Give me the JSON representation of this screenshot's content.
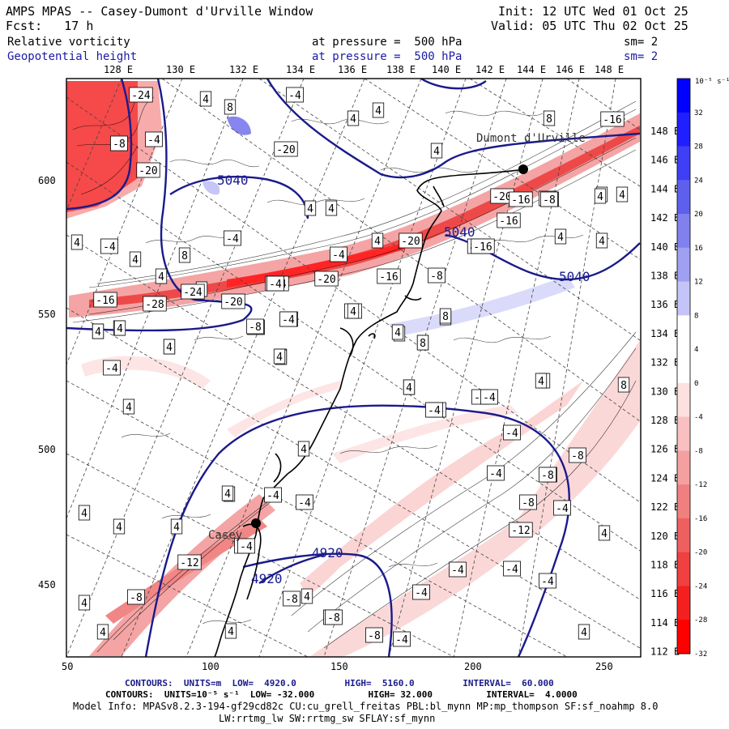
{
  "header": {
    "title": "AMPS MPAS -- Casey-Dumont d'Urville Window",
    "init": "Init: 12 UTC Wed 01 Oct 25",
    "fcst": "Fcst:   17 h",
    "valid": "Valid: 05 UTC Thu 02 Oct 25",
    "field1_name": "Relative vorticity",
    "field1_level": "at pressure =  500 hPa",
    "field1_sm": "sm= 2",
    "field2_name": "Geopotential height",
    "field2_level": "at pressure =  500 hPa",
    "field2_sm": "sm= 2"
  },
  "top_lon_labels": [
    "128 E",
    "130 E",
    "132 E",
    "134 E",
    "136 E",
    "138 E",
    "140 E",
    "142 E",
    "144 E",
    "146 E",
    "148 E"
  ],
  "right_lon_labels": [
    "148 E",
    "146 E",
    "144 E",
    "142 E",
    "140 E",
    "138 E",
    "136 E",
    "134 E",
    "132 E",
    "130 E",
    "128 E",
    "126 E",
    "124 E",
    "122 E",
    "120 E",
    "118 E",
    "116 E",
    "114 E",
    "112 E"
  ],
  "x_ticks": [
    "50",
    "100",
    "150",
    "200",
    "250"
  ],
  "y_ticks": [
    "600",
    "550",
    "500",
    "450"
  ],
  "places": {
    "dumont": "Dumont d'Urville",
    "casey": "Casey"
  },
  "height_labels": [
    "5040",
    "5040",
    "5040",
    "4920",
    "4920"
  ],
  "colorbar": {
    "unit": "10⁻⁵ s⁻¹",
    "labels": [
      "32",
      "28",
      "24",
      "20",
      "16",
      "12",
      "8",
      "4",
      "0",
      "-4",
      "-8",
      "-12",
      "-16",
      "-20",
      "-24",
      "-28",
      "-32"
    ],
    "colors": [
      "#0000ff",
      "#1f1fff",
      "#3f3ff5",
      "#5f5fee",
      "#8080ee",
      "#a0a0f2",
      "#c4c4f8",
      "#ffffff",
      "#ffffff",
      "#fde0e0",
      "#f8c0c0",
      "#f4a0a0",
      "#f08080",
      "#ee6060",
      "#f04040",
      "#f42020",
      "#ff0000"
    ]
  },
  "footer": {
    "line1": "CONTOURS:  UNITS=m  LOW=  4920.0         HIGH=  5160.0         INTERVAL=  60.000",
    "line2": "CONTOURS:  UNITS=10⁻⁵ s⁻¹  LOW= -32.000          HIGH= 32.000          INTERVAL=  4.0000",
    "line3": "Model Info: MPASv8.2.3-194-gf29cd82c CU:cu_grell_freitas PBL:bl_mynn MP:mp_thompson SF:sf_noahmp 8.0",
    "line4": "LW:rrtmg_lw SW:rrtmg_sw SFLAY:sf_mynn"
  },
  "vort_labels": [
    {
      "t": "-24"
    },
    {
      "t": "4"
    },
    {
      "t": "8"
    },
    {
      "t": "-4"
    },
    {
      "t": "4"
    },
    {
      "t": "4"
    },
    {
      "t": "8"
    },
    {
      "t": "-16"
    },
    {
      "t": "-8"
    },
    {
      "t": "-4"
    },
    {
      "t": "-20"
    },
    {
      "t": "4"
    },
    {
      "t": "-8"
    },
    {
      "t": "4"
    },
    {
      "t": "4"
    },
    {
      "t": "-20"
    },
    {
      "t": "-16"
    },
    {
      "t": "4"
    },
    {
      "t": "4"
    },
    {
      "t": "8"
    },
    {
      "t": "-4"
    },
    {
      "t": "4"
    },
    {
      "t": "4"
    },
    {
      "t": "4"
    },
    {
      "t": "4"
    },
    {
      "t": "-4"
    },
    {
      "t": "-4"
    },
    {
      "t": "4"
    },
    {
      "t": "-20"
    },
    {
      "t": "-8"
    },
    {
      "t": "4"
    },
    {
      "t": "8"
    },
    {
      "t": "4"
    },
    {
      "t": "4"
    },
    {
      "t": "-16"
    },
    {
      "t": "-24"
    },
    {
      "t": "-28"
    },
    {
      "t": "-20"
    },
    {
      "t": "-8"
    },
    {
      "t": "-24"
    },
    {
      "t": "-20"
    },
    {
      "t": "-4"
    },
    {
      "t": "-16"
    },
    {
      "t": "-8"
    },
    {
      "t": "4"
    },
    {
      "t": "4"
    },
    {
      "t": "-4"
    },
    {
      "t": "8"
    },
    {
      "t": "-4"
    },
    {
      "t": "4"
    },
    {
      "t": "8"
    },
    {
      "t": "8"
    },
    {
      "t": "4"
    },
    {
      "t": "-4"
    },
    {
      "t": "-8"
    },
    {
      "t": "4"
    },
    {
      "t": "4"
    },
    {
      "t": "-4"
    },
    {
      "t": "4"
    },
    {
      "t": "-4"
    },
    {
      "t": "4"
    },
    {
      "t": "-8"
    },
    {
      "t": "-4"
    },
    {
      "t": "4"
    },
    {
      "t": "-4"
    },
    {
      "t": "-4"
    },
    {
      "t": "-4"
    },
    {
      "t": "-4"
    },
    {
      "t": "-8"
    },
    {
      "t": "-8"
    },
    {
      "t": "-4"
    },
    {
      "t": "-12"
    },
    {
      "t": "4"
    },
    {
      "t": "4"
    },
    {
      "t": "-12"
    },
    {
      "t": "4"
    },
    {
      "t": "-4"
    },
    {
      "t": "4"
    },
    {
      "t": "-8"
    },
    {
      "t": "-4"
    },
    {
      "t": "-4"
    },
    {
      "t": "-4"
    },
    {
      "t": "4"
    },
    {
      "t": "4"
    },
    {
      "t": "4"
    },
    {
      "t": "-8"
    },
    {
      "t": "-8"
    },
    {
      "t": "-8"
    },
    {
      "t": "-4"
    },
    {
      "t": "4"
    },
    {
      "t": "4"
    },
    {
      "t": "4"
    },
    {
      "t": "4"
    },
    {
      "t": "-4"
    },
    {
      "t": "-8"
    },
    {
      "t": "-4"
    },
    {
      "t": "8"
    },
    {
      "t": "4"
    },
    {
      "t": "-16"
    },
    {
      "t": "-20"
    },
    {
      "t": "-16"
    },
    {
      "t": "-8"
    },
    {
      "t": "-4"
    },
    {
      "t": "-4"
    },
    {
      "t": "4"
    },
    {
      "t": "4"
    },
    {
      "t": "4"
    },
    {
      "t": "8"
    },
    {
      "t": "4"
    },
    {
      "t": "4"
    },
    {
      "t": "4"
    },
    {
      "t": "-4"
    },
    {
      "t": "4"
    },
    {
      "t": "4"
    },
    {
      "t": "4"
    }
  ]
}
